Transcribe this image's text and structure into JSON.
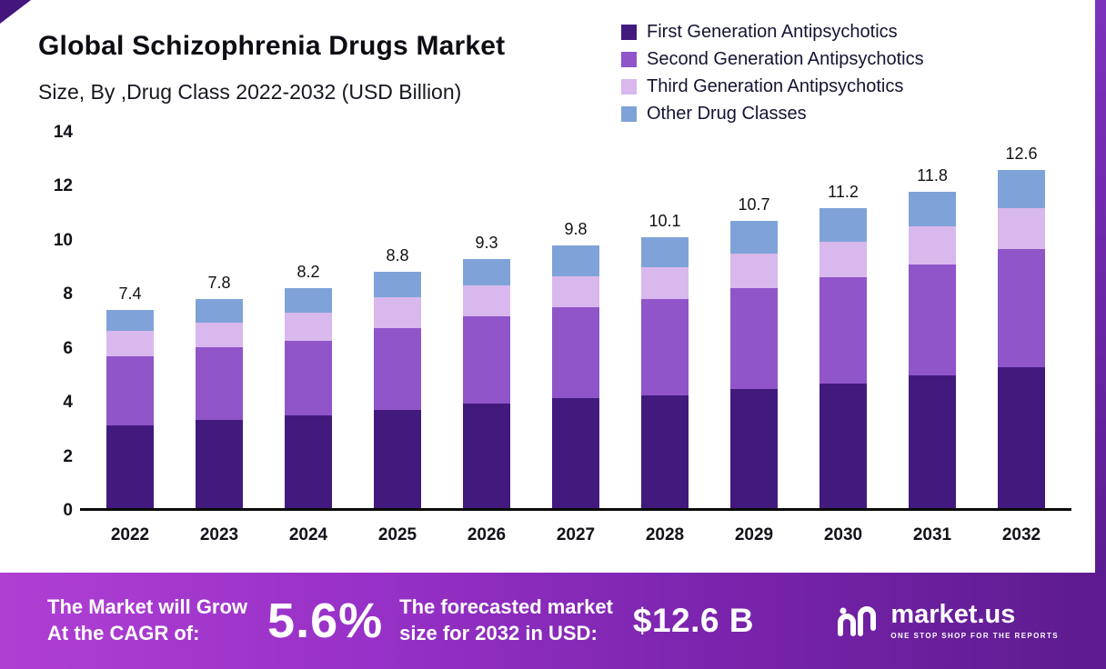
{
  "header": {
    "title": "Global Schizophrenia Drugs Market",
    "subtitle": "Size, By ,Drug Class 2022-2032 (USD Billion)"
  },
  "chart_data": {
    "type": "bar",
    "stacked": true,
    "title": "Global Schizophrenia Drugs Market Size, By Drug Class 2022-2032 (USD Billion)",
    "xlabel": "",
    "ylabel": "USD Billion",
    "ylim": [
      0,
      14
    ],
    "yticks": [
      0,
      2,
      4,
      6,
      8,
      10,
      12,
      14
    ],
    "grid": false,
    "legend_position": "top-right",
    "categories": [
      "2022",
      "2023",
      "2024",
      "2025",
      "2026",
      "2027",
      "2028",
      "2029",
      "2030",
      "2031",
      "2032"
    ],
    "series": [
      {
        "name": "First Generation Antipsychotics",
        "color": "#421a7d",
        "values": [
          3.1,
          3.3,
          3.45,
          3.65,
          3.9,
          4.1,
          4.2,
          4.45,
          4.65,
          4.95,
          5.25
        ]
      },
      {
        "name": "Second Generation Antipsychotics",
        "color": "#8f55c9",
        "values": [
          2.55,
          2.7,
          2.8,
          3.05,
          3.25,
          3.4,
          3.6,
          3.75,
          3.95,
          4.15,
          4.4
        ]
      },
      {
        "name": "Third Generation Antipsychotics",
        "color": "#d9b8ed",
        "values": [
          0.95,
          0.9,
          1.05,
          1.15,
          1.15,
          1.15,
          1.2,
          1.3,
          1.35,
          1.4,
          1.55
        ]
      },
      {
        "name": "Other Drug Classes",
        "color": "#7fa3d8",
        "values": [
          0.8,
          0.9,
          0.9,
          0.95,
          1.0,
          1.15,
          1.1,
          1.2,
          1.25,
          1.3,
          1.4
        ]
      }
    ],
    "totals": [
      "7.4",
      "7.8",
      "8.2",
      "8.8",
      "9.3",
      "9.8",
      "10.1",
      "10.7",
      "11.2",
      "11.8",
      "12.6"
    ]
  },
  "footer": {
    "cagr_label_line1": "The Market will Grow",
    "cagr_label_line2": "At the CAGR of:",
    "cagr_value": "5.6%",
    "forecast_label_line1": "The forecasted market",
    "forecast_label_line2": "size for 2032 in USD:",
    "forecast_value": "$12.6 B",
    "brand_name": "market.us",
    "brand_tagline": "ONE STOP SHOP FOR THE REPORTS"
  }
}
